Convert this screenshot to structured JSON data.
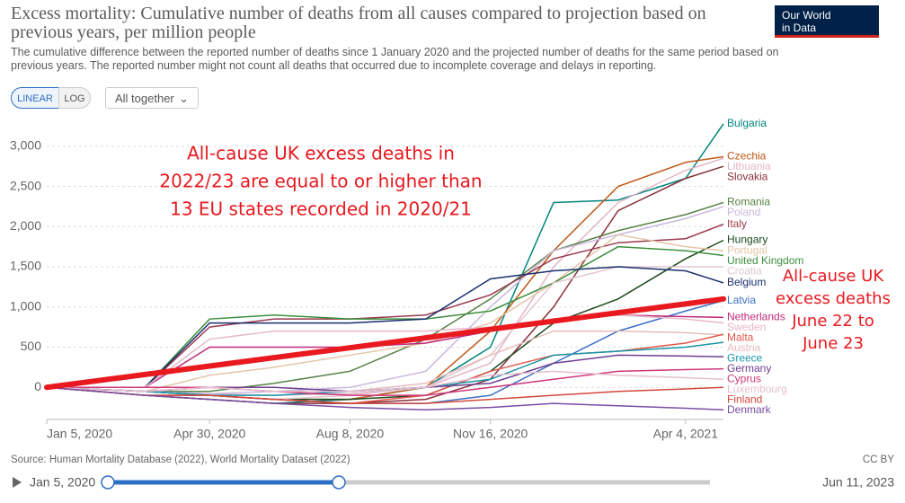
{
  "chart_data": {
    "type": "line",
    "title": "Excess mortality: Cumulative number of deaths from all causes compared to projection based on previous years, per million people",
    "subtitle": "The cumulative difference between the reported number of deaths since 1 January 2020 and the projected number of deaths for the same period based on previous years. The reported number might not count all deaths that occurred due to incomplete coverage and delays in reporting.",
    "logo": [
      "Our World",
      "in Data"
    ],
    "controls": {
      "scale_buttons": [
        "LINEAR",
        "LOG"
      ],
      "dropdown": "All together",
      "slider_start": "Jan 5, 2020",
      "slider_end": "Jun 11, 2023"
    },
    "source": "Source: Human Mortality Database (2022), World Mortality Dataset (2022)",
    "license": "CC BY",
    "annotations": [
      {
        "lines": [
          "All-cause UK excess deaths in",
          "2022/23 are equal to or higher than",
          "13 EU states recorded in 2020/21"
        ]
      },
      {
        "lines": [
          "All-cause UK",
          "excess deaths",
          "June 22 to",
          "June 23"
        ]
      }
    ],
    "x": [
      "2020-01-05",
      "2020-03-15",
      "2020-04-30",
      "2020-06-15",
      "2020-08-08",
      "2020-10-01",
      "2020-11-16",
      "2020-12-31",
      "2021-02-15",
      "2021-04-04",
      "2021-05-01"
    ],
    "xlim": [
      "2020-01-05",
      "2021-05-01"
    ],
    "xticks": [
      {
        "value": "2020-01-05",
        "label": "Jan 5, 2020"
      },
      {
        "value": "2020-04-30",
        "label": "Apr 30, 2020"
      },
      {
        "value": "2020-08-08",
        "label": "Aug 8, 2020"
      },
      {
        "value": "2020-11-16",
        "label": "Nov 16, 2020"
      },
      {
        "value": "2021-04-04",
        "label": "Apr 4, 2021"
      }
    ],
    "ylim": [
      -400,
      3300
    ],
    "yticks": [
      0,
      500,
      {
        "value": 1000,
        "label": "1,000"
      },
      {
        "value": 1500,
        "label": "1,500"
      },
      {
        "value": 2000,
        "label": "2,000"
      },
      {
        "value": 2500,
        "label": "2,500"
      },
      {
        "value": 3000,
        "label": "3,000"
      }
    ],
    "grid": true,
    "series": [
      {
        "name": "Bulgaria",
        "color": "#00847e",
        "values": [
          0,
          -100,
          -150,
          -200,
          -150,
          0,
          500,
          2300,
          2330,
          2600,
          3280
        ]
      },
      {
        "name": "Czechia",
        "color": "#c05917",
        "values": [
          0,
          -50,
          -100,
          -150,
          -150,
          0,
          700,
          1700,
          2500,
          2800,
          2870
        ]
      },
      {
        "name": "Lithuania",
        "color": "#e3b6c6",
        "values": [
          0,
          -50,
          -80,
          -100,
          -80,
          0,
          300,
          1500,
          2300,
          2700,
          2850
        ]
      },
      {
        "name": "Slovakia",
        "color": "#883039",
        "values": [
          0,
          -100,
          -150,
          -200,
          -200,
          -150,
          100,
          1000,
          2200,
          2600,
          2750
        ]
      },
      {
        "name": "Romania",
        "color": "#578145",
        "values": [
          0,
          -50,
          -50,
          50,
          200,
          600,
          1100,
          1700,
          1950,
          2150,
          2300
        ]
      },
      {
        "name": "Poland",
        "color": "#c9b9dc",
        "values": [
          0,
          -50,
          -80,
          -50,
          0,
          200,
          1000,
          1700,
          1900,
          2100,
          2250
        ]
      },
      {
        "name": "Italy",
        "color": "#9a3a4f",
        "values": [
          0,
          0,
          750,
          850,
          850,
          900,
          1150,
          1600,
          1800,
          1850,
          2030
        ]
      },
      {
        "name": "Hungary",
        "color": "#1e4a1e",
        "values": [
          0,
          -50,
          -100,
          -150,
          -150,
          -100,
          200,
          800,
          1100,
          1600,
          1830
        ]
      },
      {
        "name": "Portugal",
        "color": "#e5c6a8",
        "values": [
          0,
          -50,
          150,
          250,
          400,
          550,
          800,
          1300,
          1900,
          1750,
          1700
        ]
      },
      {
        "name": "United Kingdom",
        "color": "#3c8f3c",
        "values": [
          0,
          0,
          850,
          900,
          850,
          850,
          950,
          1300,
          1750,
          1700,
          1640
        ]
      },
      {
        "name": "Croatia",
        "color": "#e2c8d2",
        "values": [
          0,
          -100,
          -100,
          -150,
          -100,
          0,
          400,
          1300,
          1500,
          1500,
          1500
        ]
      },
      {
        "name": "Belgium",
        "color": "#1a2f6e",
        "values": [
          0,
          0,
          800,
          800,
          800,
          850,
          1350,
          1450,
          1500,
          1450,
          1300
        ]
      },
      {
        "name": "Latvia",
        "color": "#3b6fc4",
        "values": [
          0,
          -50,
          -100,
          -150,
          -200,
          -200,
          -100,
          300,
          700,
          950,
          1080
        ]
      },
      {
        "name": "Netherlands",
        "color": "#c0287d",
        "values": [
          0,
          0,
          500,
          500,
          500,
          550,
          700,
          850,
          900,
          880,
          870
        ]
      },
      {
        "name": "Sweden",
        "color": "#e6b8c8",
        "values": [
          0,
          0,
          600,
          700,
          700,
          700,
          750,
          850,
          900,
          850,
          800
        ]
      },
      {
        "name": "Austria",
        "color": "#e8bcbc",
        "values": [
          0,
          -50,
          0,
          -50,
          -50,
          50,
          400,
          700,
          700,
          680,
          650
        ]
      },
      {
        "name": "Malta",
        "color": "#e0584a",
        "values": [
          0,
          -100,
          -100,
          -150,
          -200,
          -100,
          200,
          400,
          450,
          550,
          660
        ]
      },
      {
        "name": "Greece",
        "color": "#1796a8",
        "values": [
          0,
          -50,
          -100,
          -100,
          -50,
          0,
          100,
          400,
          450,
          500,
          560
        ]
      },
      {
        "name": "Germany",
        "color": "#6d3e91",
        "values": [
          0,
          -50,
          0,
          0,
          -50,
          0,
          50,
          300,
          400,
          390,
          380
        ]
      },
      {
        "name": "Cyprus",
        "color": "#d1367a",
        "values": [
          0,
          0,
          0,
          -50,
          -100,
          -100,
          0,
          100,
          200,
          220,
          230
        ]
      },
      {
        "name": "Luxembourg",
        "color": "#e6bfcf",
        "values": [
          0,
          -50,
          0,
          -50,
          -50,
          0,
          150,
          200,
          150,
          120,
          100
        ]
      },
      {
        "name": "Finland",
        "color": "#d4483c",
        "values": [
          0,
          -100,
          -100,
          -150,
          -200,
          -200,
          -150,
          -100,
          -50,
          -20,
          0
        ]
      },
      {
        "name": "Denmark",
        "color": "#7a4da3",
        "values": [
          0,
          -100,
          -150,
          -200,
          -250,
          -280,
          -250,
          -200,
          -230,
          -260,
          -280
        ]
      }
    ],
    "trend_line": {
      "color": "#e8191f",
      "x": [
        "2020-01-05",
        "2021-05-01"
      ],
      "values": [
        0,
        1100
      ]
    }
  }
}
